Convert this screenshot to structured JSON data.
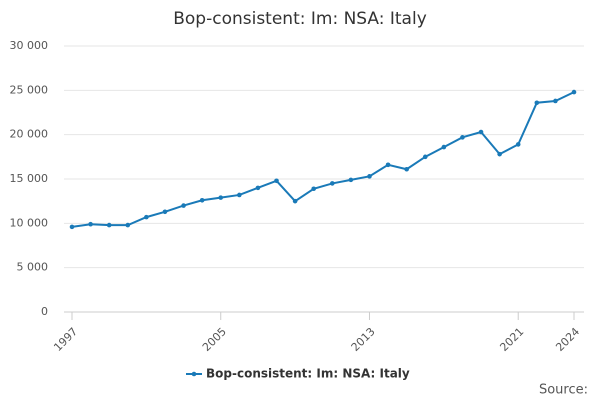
{
  "chart_data": {
    "type": "line",
    "title": "Bop-consistent: Im: NSA: Italy",
    "x": [
      1997,
      1998,
      1999,
      2000,
      2001,
      2002,
      2003,
      2004,
      2005,
      2006,
      2007,
      2008,
      2009,
      2010,
      2011,
      2012,
      2013,
      2014,
      2015,
      2016,
      2017,
      2018,
      2019,
      2020,
      2021,
      2022,
      2023,
      2024
    ],
    "series": [
      {
        "name": "Bop-consistent: Im: NSA: Italy",
        "color": "#1a7ab8",
        "values": [
          9600,
          9900,
          9800,
          9800,
          10700,
          11300,
          12000,
          12600,
          12900,
          13200,
          14000,
          14800,
          12500,
          13900,
          14500,
          14900,
          15300,
          16600,
          16100,
          17500,
          18600,
          19700,
          20300,
          17800,
          18900,
          23600,
          23800,
          24800
        ]
      }
    ],
    "xlim": [
      1997,
      2024
    ],
    "xticks": [
      1997,
      2005,
      2013,
      2021,
      2024
    ],
    "ylim": [
      0,
      30000
    ],
    "yticks": [
      0,
      {
        "value": 5000,
        "label": "5 000"
      },
      {
        "value": 10000,
        "label": "10 000"
      },
      {
        "value": 15000,
        "label": "15 000"
      },
      {
        "value": 20000,
        "label": "20 000"
      },
      {
        "value": 25000,
        "label": "25 000"
      },
      {
        "value": 30000,
        "label": "30 000"
      }
    ],
    "grid": true,
    "legend": "bottom",
    "source": "Source:"
  }
}
